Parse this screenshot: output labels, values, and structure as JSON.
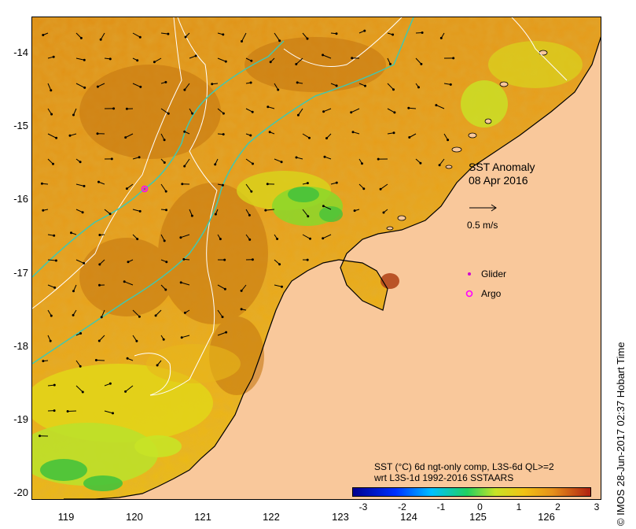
{
  "map": {
    "annotation_title": "SST Anomaly",
    "annotation_date": "08 Apr 2016",
    "velocity_scale_label": "0.5 m/s",
    "glider_label": "Glider",
    "argo_label": "Argo",
    "caption_line1": "SST (°C) 6d ngt-only comp, L3S-6d QL>=2",
    "caption_line2": "wrt L3S-1d 1992-2016 SSTAARS",
    "credit": "© IMOS 28-Jun-2017 02:37 Hobart Time",
    "lat_ticks": [
      "-14",
      "-15",
      "-16",
      "-17",
      "-18",
      "-19",
      "-20"
    ],
    "lon_ticks": [
      "119",
      "120",
      "121",
      "122",
      "123",
      "124",
      "125",
      "126"
    ],
    "colorbar_ticks": [
      "-3",
      "-2",
      "-1",
      "0",
      "1",
      "2",
      "3"
    ],
    "colors": {
      "land": "#f9c89b",
      "sst_warm": "#e49a1d",
      "sst_hot": "#c97a12",
      "sst_mid": "#f2c114",
      "sst_cool": "#c8e326",
      "sst_green": "#46c23b",
      "glider": "#d000d0",
      "argo": "#ff00ff",
      "isobath_white": "#ffffff",
      "isobath_cyan": "#40c8b0"
    }
  }
}
